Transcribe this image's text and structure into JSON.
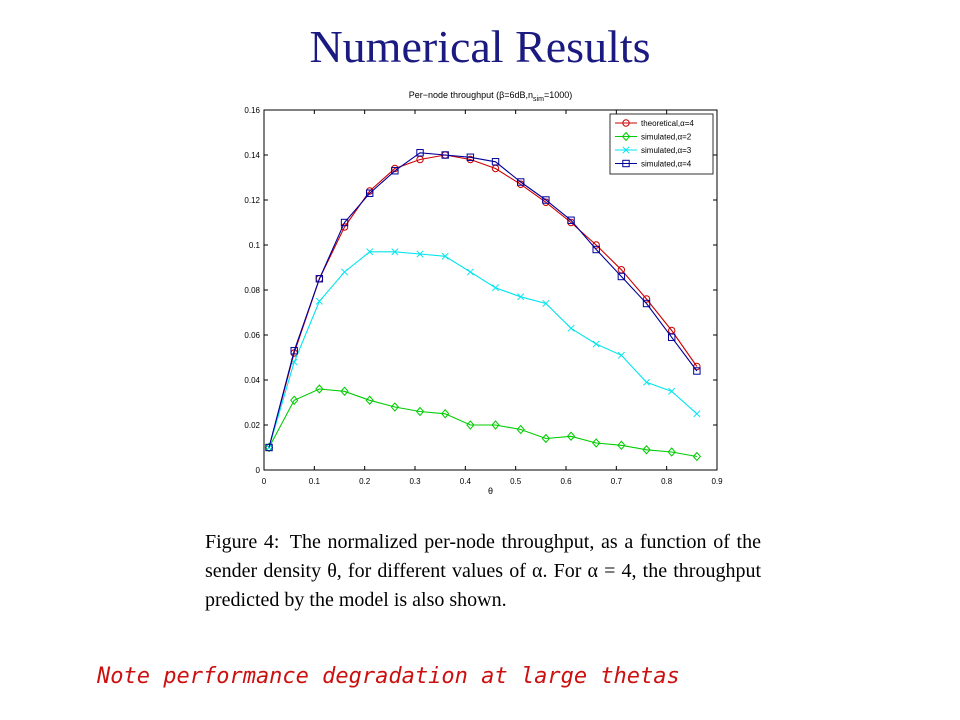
{
  "slide": {
    "title": "Numerical Results",
    "caption_label": "Figure 4:",
    "caption_text": "The normalized per-node throughput, as a function of the sender density θ, for different values of α. For α = 4, the throughput predicted by the model is also shown.",
    "note": "Note performance degradation at large thetas"
  },
  "chart_data": {
    "type": "line",
    "title": "Per−node throughput (β=6dB,n",
    "title_sub": "sim",
    "title_end": "=1000)",
    "xlabel": "θ",
    "ylabel": "",
    "xlim": [
      0,
      0.9
    ],
    "ylim": [
      0,
      0.16
    ],
    "xticks": [
      "0",
      "0.1",
      "0.2",
      "0.3",
      "0.4",
      "0.5",
      "0.6",
      "0.7",
      "0.8",
      "0.9"
    ],
    "yticks": [
      "0",
      "0.02",
      "0.04",
      "0.06",
      "0.08",
      "0.1",
      "0.12",
      "0.14",
      "0.16"
    ],
    "grid": false,
    "legend_position": "top-right",
    "x": [
      0.01,
      0.06,
      0.11,
      0.16,
      0.21,
      0.26,
      0.31,
      0.36,
      0.41,
      0.46,
      0.51,
      0.56,
      0.61,
      0.66,
      0.71,
      0.76,
      0.81,
      0.86
    ],
    "series": [
      {
        "name": "theoretical,α=4",
        "color": "#cc0000",
        "marker": "circle",
        "values": [
          0.01,
          0.052,
          0.085,
          0.108,
          0.124,
          0.134,
          0.138,
          0.14,
          0.138,
          0.134,
          0.127,
          0.119,
          0.11,
          0.1,
          0.089,
          0.076,
          0.062,
          0.046
        ]
      },
      {
        "name": "simulated,α=2",
        "color": "#00cc00",
        "marker": "diamond",
        "values": [
          0.01,
          0.031,
          0.036,
          0.035,
          0.031,
          0.028,
          0.026,
          0.025,
          0.02,
          0.02,
          0.018,
          0.014,
          0.015,
          0.012,
          0.011,
          0.009,
          0.008,
          0.006
        ]
      },
      {
        "name": "simulated,α=3",
        "color": "#00e5ee",
        "marker": "x",
        "values": [
          0.01,
          0.048,
          0.075,
          0.088,
          0.097,
          0.097,
          0.096,
          0.095,
          0.088,
          0.081,
          0.077,
          0.074,
          0.063,
          0.056,
          0.051,
          0.039,
          0.035,
          0.025
        ]
      },
      {
        "name": "simulated,α=4",
        "color": "#000099",
        "marker": "square",
        "values": [
          0.01,
          0.053,
          0.085,
          0.11,
          0.123,
          0.133,
          0.141,
          0.14,
          0.139,
          0.137,
          0.128,
          0.12,
          0.111,
          0.098,
          0.086,
          0.074,
          0.059,
          0.044
        ]
      }
    ]
  }
}
